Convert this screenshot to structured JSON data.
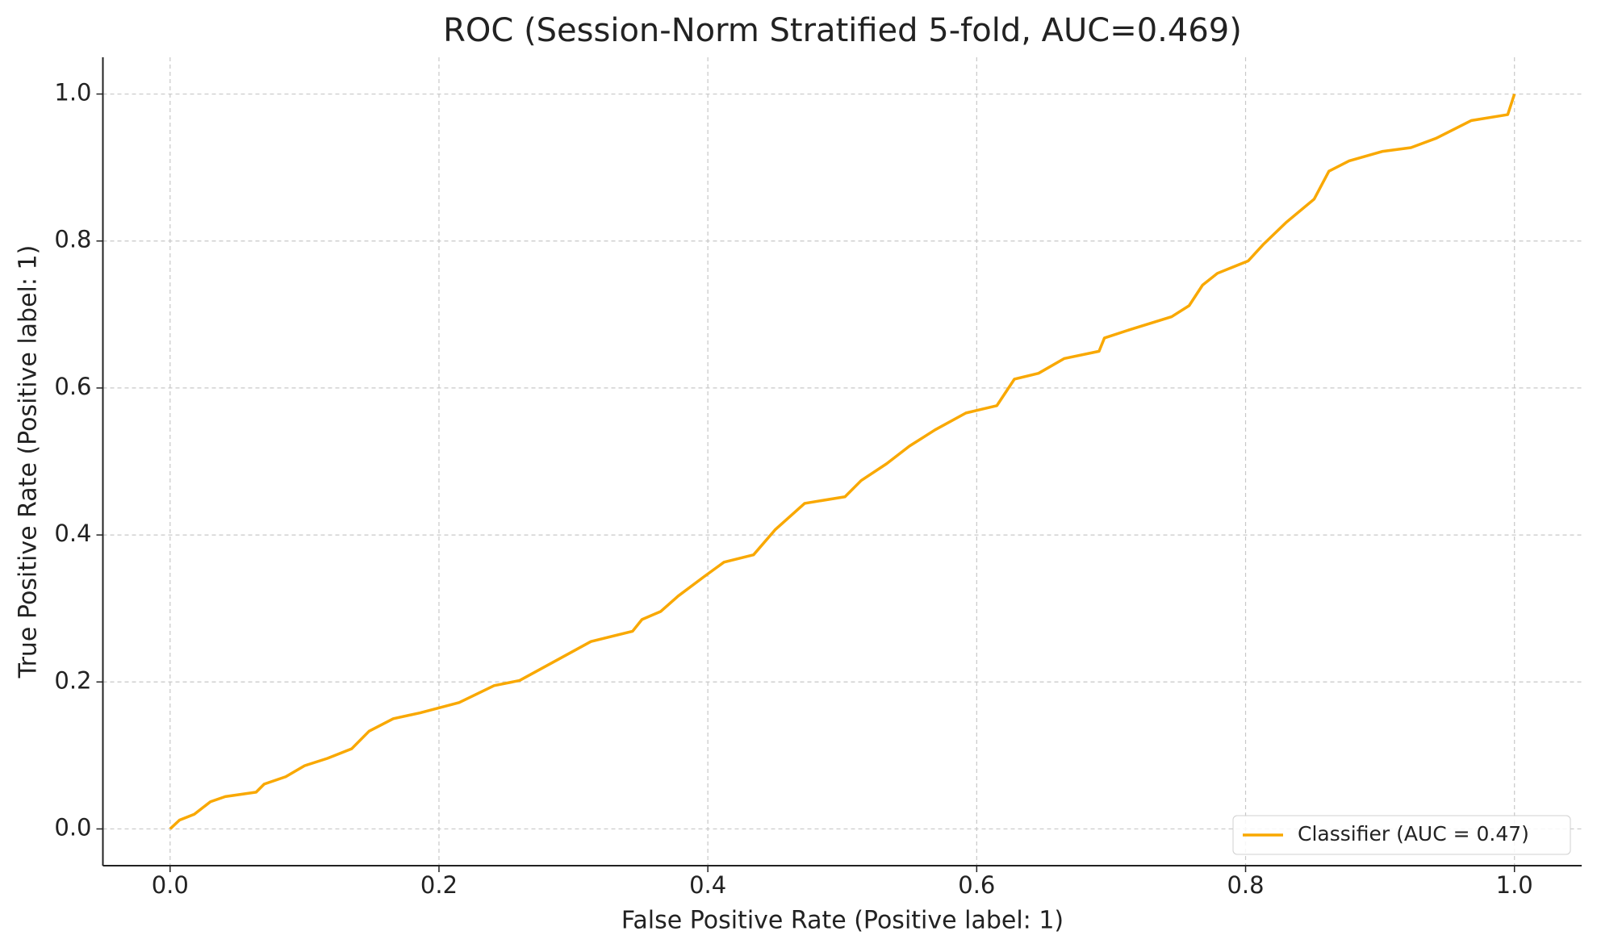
{
  "chart_data": {
    "type": "line",
    "title": "ROC (Session-Norm Stratified 5-fold, AUC=0.469)",
    "x_label": "False Positive Rate (Positive label: 1)",
    "y_label": "True Positive Rate (Positive label: 1)",
    "series": [
      {
        "name": "Classifier (AUC = 0.47)",
        "color": "#f9a800",
        "x": [
          0,
          0.007,
          0.018,
          0.03,
          0.041,
          0.064,
          0.07,
          0.086,
          0.1,
          0.117,
          0.135,
          0.148,
          0.166,
          0.186,
          0.215,
          0.241,
          0.26,
          0.289,
          0.313,
          0.344,
          0.351,
          0.365,
          0.378,
          0.397,
          0.412,
          0.434,
          0.45,
          0.472,
          0.502,
          0.514,
          0.533,
          0.55,
          0.569,
          0.592,
          0.615,
          0.628,
          0.646,
          0.665,
          0.691,
          0.695,
          0.715,
          0.745,
          0.758,
          0.768,
          0.779,
          0.802,
          0.813,
          0.83,
          0.851,
          0.862,
          0.877,
          0.902,
          0.923,
          0.942,
          0.968,
          0.995,
          1
        ],
        "values": [
          0,
          0.012,
          0.02,
          0.037,
          0.044,
          0.05,
          0.061,
          0.071,
          0.086,
          0.096,
          0.109,
          0.133,
          0.15,
          0.158,
          0.172,
          0.195,
          0.202,
          0.231,
          0.255,
          0.269,
          0.285,
          0.296,
          0.317,
          0.343,
          0.363,
          0.373,
          0.407,
          0.443,
          0.452,
          0.474,
          0.497,
          0.521,
          0.543,
          0.566,
          0.576,
          0.612,
          0.62,
          0.64,
          0.65,
          0.668,
          0.68,
          0.697,
          0.712,
          0.74,
          0.756,
          0.773,
          0.795,
          0.825,
          0.857,
          0.895,
          0.909,
          0.922,
          0.927,
          0.94,
          0.964,
          0.972,
          1
        ]
      }
    ],
    "xlim": [
      -0.05,
      1.05
    ],
    "ylim": [
      -0.05,
      1.05
    ],
    "xticks": [
      {
        "value": 0,
        "label": "0.0"
      },
      0.2,
      0.4,
      0.6,
      0.8,
      {
        "value": 1,
        "label": "1.0"
      }
    ],
    "yticks": [
      {
        "value": 0,
        "label": "0.0"
      },
      0.2,
      0.4,
      0.6,
      0.8,
      {
        "value": 1,
        "label": "1.0"
      }
    ],
    "grid": true,
    "legend_position": "lower-right"
  }
}
